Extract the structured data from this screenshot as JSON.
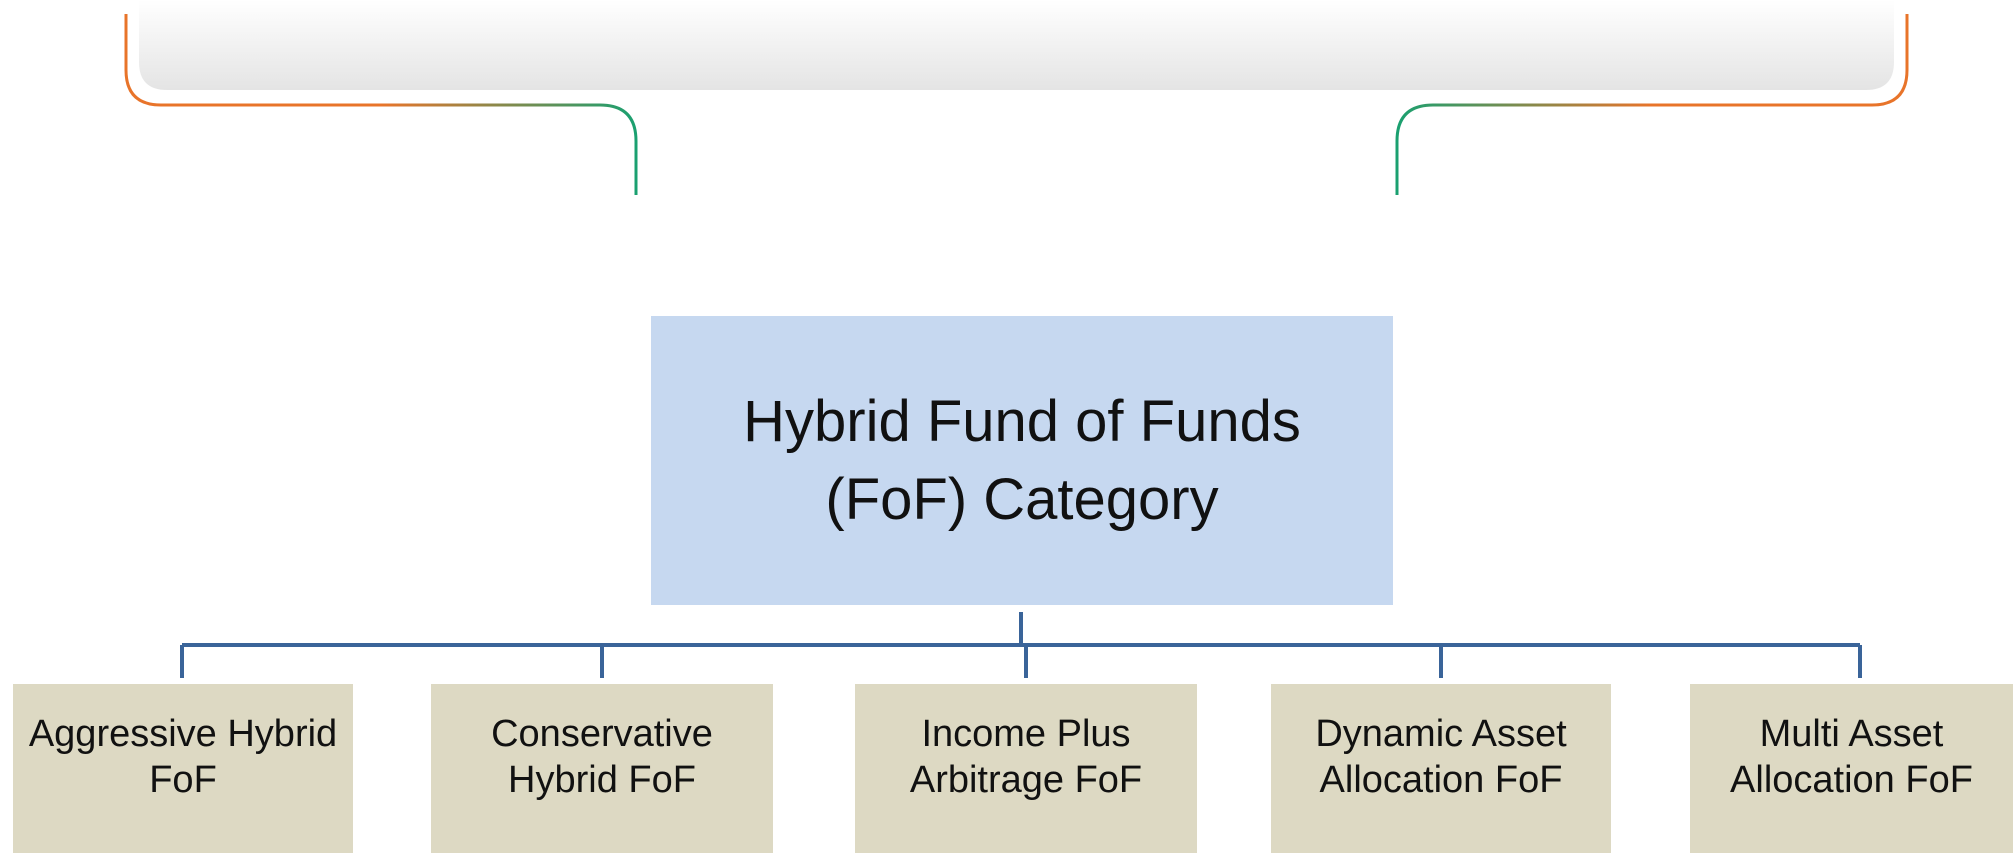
{
  "root": {
    "label": "Hybrid Fund of Funds (FoF) Category"
  },
  "children": [
    "Aggressive Hybrid FoF",
    "Conservative Hybrid FoF",
    "Income Plus Arbitrage FoF",
    "Dynamic Asset Allocation FoF",
    "Multi Asset Allocation FoF"
  ]
}
